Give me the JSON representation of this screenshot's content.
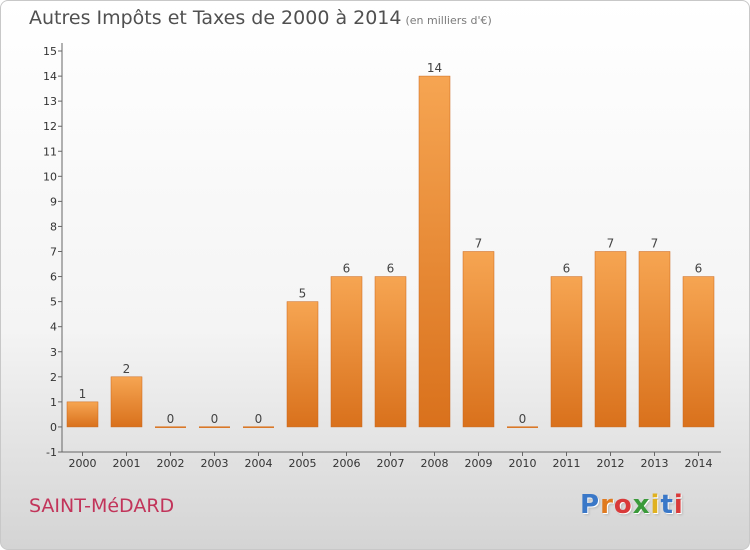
{
  "chart_data": {
    "type": "bar",
    "title": "Autres Impôts et Taxes de 2000 à 2014",
    "subtitle": "(en milliers d'€)",
    "categories": [
      "2000",
      "2001",
      "2002",
      "2003",
      "2004",
      "2005",
      "2006",
      "2007",
      "2008",
      "2009",
      "2010",
      "2011",
      "2012",
      "2013",
      "2014"
    ],
    "values": [
      1,
      2,
      0,
      0,
      0,
      5,
      6,
      6,
      14,
      7,
      0,
      6,
      7,
      7,
      6
    ],
    "data_labels": [
      "1",
      "2",
      "0",
      "0",
      "0",
      "5",
      "6",
      "6",
      "14",
      "7",
      "0",
      "6",
      "7",
      "7",
      "6"
    ],
    "yticks": [
      "-1",
      "0",
      "1",
      "2",
      "3",
      "4",
      "5",
      "6",
      "7",
      "8",
      "9",
      "10",
      "11",
      "12",
      "13",
      "14",
      "15"
    ],
    "ylim": [
      -1,
      15
    ],
    "grid": false,
    "bar_color": "#f29c46",
    "bar_color_dark": "#d9711c",
    "xlabel": "",
    "ylabel": ""
  },
  "footer": {
    "commune": "SAINT-MéDARD",
    "logo_letters": [
      {
        "ch": "P",
        "color": "#3a78c8"
      },
      {
        "ch": "r",
        "color": "#e07a1f"
      },
      {
        "ch": "o",
        "color": "#d93a3a"
      },
      {
        "ch": "x",
        "color": "#3a9a3a"
      },
      {
        "ch": "i",
        "color": "#e0b11f"
      },
      {
        "ch": "t",
        "color": "#3a78c8"
      },
      {
        "ch": "i",
        "color": "#d93a3a"
      }
    ]
  }
}
